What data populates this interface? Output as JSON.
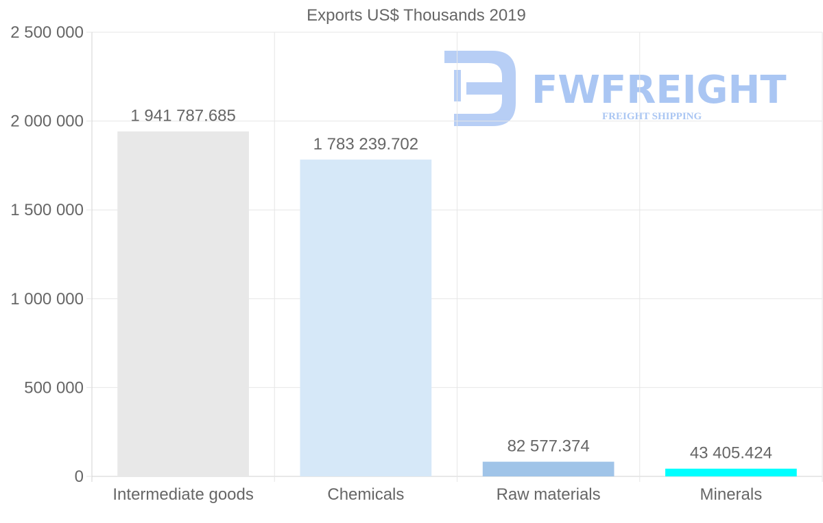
{
  "watermark": {
    "brand": "FWFREIGHT",
    "tagline": "FREIGHT SHIPPING",
    "color": "#aac6f3"
  },
  "chart_data": {
    "type": "bar",
    "title": "Exports US$ Thousands 2019",
    "categories": [
      "Intermediate goods",
      "Chemicals",
      "Raw materials",
      "Minerals"
    ],
    "values": [
      1941787.685,
      1783239.702,
      82577.374,
      43405.424
    ],
    "value_labels": [
      "1 941 787.685",
      "1 783 239.702",
      "82 577.374",
      "43 405.424"
    ],
    "colors": [
      "#e8e8e8",
      "#d6e8f8",
      "#a0c4e8",
      "#00ffff"
    ],
    "ylim": [
      0,
      2500000
    ],
    "yticks": [
      0,
      500000,
      1000000,
      1500000,
      2000000,
      2500000
    ],
    "ytick_labels": [
      "0",
      "500 000",
      "1 000 000",
      "1 500 000",
      "2 000 000",
      "2 500 000"
    ],
    "xlabel": "",
    "ylabel": "",
    "grid": true,
    "legend": "none"
  }
}
